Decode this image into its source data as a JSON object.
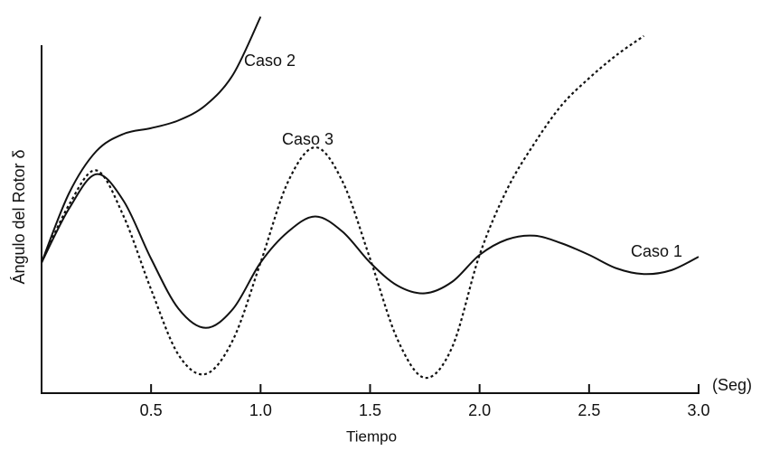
{
  "chart_data": {
    "type": "line",
    "x_label": "Tiempo",
    "x_unit": "(Seg)",
    "y_label": "Ángulo del Rotor δ",
    "xlim": [
      0,
      3
    ],
    "ylim": [
      0,
      100
    ],
    "xticks": [
      0.5,
      {
        "value": 1,
        "label": "1.0"
      },
      1.5,
      {
        "value": 2,
        "label": "2.0"
      },
      2.5,
      {
        "value": 3,
        "label": "3.0"
      }
    ],
    "x": [
      0,
      0.125,
      0.25,
      0.375,
      0.5,
      0.625,
      0.75,
      0.875,
      1,
      1.125,
      1.25,
      1.375,
      1.5,
      1.625,
      1.75,
      1.875,
      2,
      2.125,
      2.25,
      2.375,
      2.5,
      2.625,
      2.75,
      2.875,
      3
    ],
    "series": [
      {
        "name": "Caso 1",
        "color": "#111111",
        "style": "solid",
        "values": [
          34,
          48,
          57,
          50,
          35,
          22,
          17,
          22,
          34,
          42,
          46,
          42,
          34,
          28,
          26,
          29,
          36,
          40,
          41,
          39,
          36,
          32.5,
          31,
          32,
          35.5
        ]
      },
      {
        "name": "Caso 2",
        "color": "#111111",
        "style": "solid",
        "values": [
          34,
          52,
          63,
          67.5,
          69,
          71,
          75,
          83,
          98,
          null,
          null,
          null,
          null,
          null,
          null,
          null,
          null,
          null,
          null,
          null,
          null,
          null,
          null,
          null,
          null
        ]
      },
      {
        "name": "Caso 3",
        "color": "#111111",
        "style": "dotted",
        "values": [
          34,
          49,
          58,
          46,
          27,
          10,
          5,
          14,
          34,
          55,
          64,
          55,
          35,
          14,
          4,
          12,
          36,
          53,
          65,
          75,
          82,
          88,
          93,
          null,
          null
        ]
      }
    ]
  }
}
